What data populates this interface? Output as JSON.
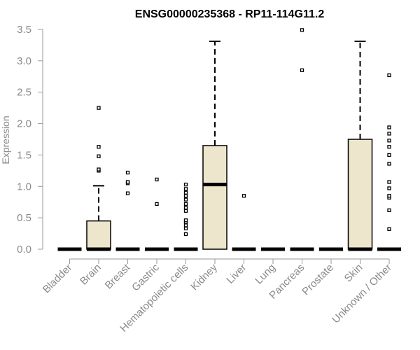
{
  "chart_data": {
    "type": "box",
    "title": "ENSG00000235368 - RP11-114G11.2",
    "xlabel": "",
    "ylabel": "Expression",
    "ylim": [
      0,
      3.5
    ],
    "yticks": [
      0.0,
      0.5,
      1.0,
      1.5,
      2.0,
      2.5,
      3.0,
      3.5
    ],
    "ytick_labels": [
      "0.0",
      "0.5",
      "1.0",
      "1.5",
      "2.0",
      "2.5",
      "3.0",
      "3.5"
    ],
    "grid": false,
    "box_fill": "#ede6cc",
    "categories": [
      "Bladder",
      "Brain",
      "Breast",
      "Gastric",
      "Hematopoietic cells",
      "Kidney",
      "Liver",
      "Lung",
      "Pancreas",
      "Prostate",
      "Skin",
      "Unknown / Other"
    ],
    "boxes": [
      {
        "q1": 0,
        "median": 0,
        "q3": 0,
        "whisker_low": 0,
        "whisker_high": 0,
        "outliers": []
      },
      {
        "q1": 0,
        "median": 0,
        "q3": 0.45,
        "whisker_low": 0,
        "whisker_high": 1.01,
        "outliers": [
          1.25,
          1.27,
          1.48,
          1.63,
          2.25
        ]
      },
      {
        "q1": 0,
        "median": 0,
        "q3": 0,
        "whisker_low": 0,
        "whisker_high": 0,
        "outliers": [
          0.89,
          1.05,
          1.07,
          1.22
        ]
      },
      {
        "q1": 0,
        "median": 0,
        "q3": 0,
        "whisker_low": 0,
        "whisker_high": 0,
        "outliers": [
          0.72,
          1.11
        ]
      },
      {
        "q1": 0,
        "median": 0,
        "q3": 0,
        "whisker_low": 0,
        "whisker_high": 0,
        "outliers": [
          0.24,
          0.33,
          0.38,
          0.43,
          0.46,
          0.61,
          0.66,
          0.72,
          0.79,
          0.85,
          0.9,
          0.96,
          1.03
        ]
      },
      {
        "q1": 0,
        "median": 1.03,
        "q3": 1.65,
        "whisker_low": 0,
        "whisker_high": 3.31,
        "outliers": []
      },
      {
        "q1": 0,
        "median": 0,
        "q3": 0,
        "whisker_low": 0,
        "whisker_high": 0,
        "outliers": [
          0.85
        ]
      },
      {
        "q1": 0,
        "median": 0,
        "q3": 0,
        "whisker_low": 0,
        "whisker_high": 0,
        "outliers": []
      },
      {
        "q1": 0,
        "median": 0,
        "q3": 0,
        "whisker_low": 0,
        "whisker_high": 0,
        "outliers": [
          2.85,
          3.49
        ]
      },
      {
        "q1": 0,
        "median": 0,
        "q3": 0,
        "whisker_low": 0,
        "whisker_high": 0,
        "outliers": []
      },
      {
        "q1": 0,
        "median": 0,
        "q3": 1.75,
        "whisker_low": 0,
        "whisker_high": 3.31,
        "outliers": []
      },
      {
        "q1": 0,
        "median": 0,
        "q3": 0,
        "whisker_low": 0,
        "whisker_high": 0,
        "outliers": [
          0.32,
          0.62,
          0.82,
          0.85,
          0.97,
          1.07,
          1.36,
          1.5,
          1.63,
          1.73,
          1.84,
          1.94,
          2.77
        ]
      }
    ]
  }
}
